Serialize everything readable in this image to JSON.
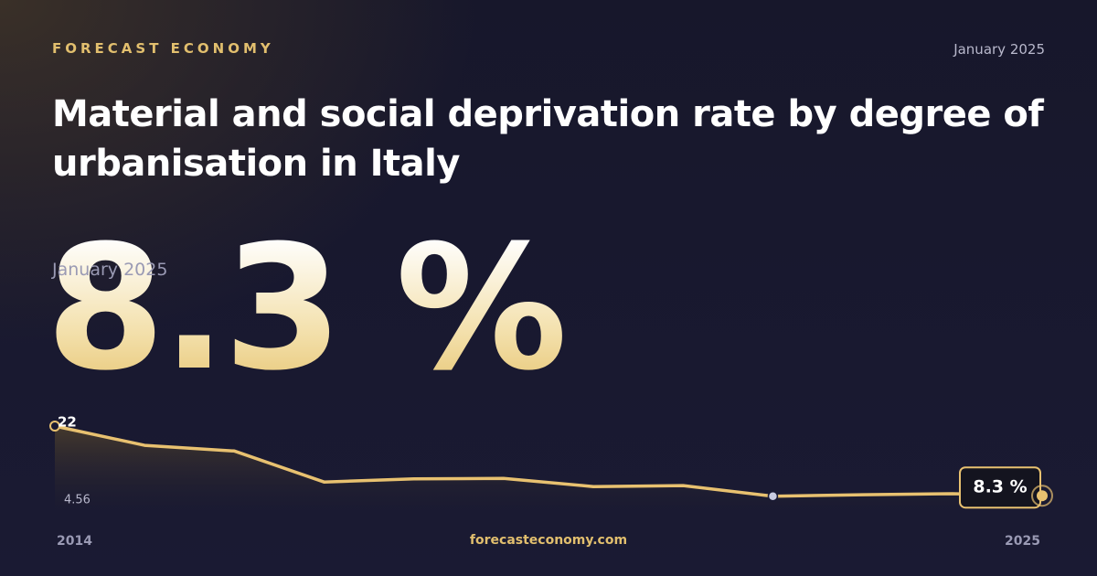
{
  "header": {
    "brand": "FORECAST ECONOMY",
    "date": "January 2025"
  },
  "footer": {
    "site": "forecasteconomy.com"
  },
  "chart_data": {
    "type": "line",
    "title": "Material and social deprivation rate by degree of urbanisation in Italy",
    "x": [
      2014,
      2015,
      2016,
      2017,
      2018,
      2019,
      2020,
      2021,
      2022,
      2023,
      2024,
      2025
    ],
    "values": [
      22,
      18.2,
      17.1,
      11.0,
      11.6,
      11.7,
      10.1,
      10.3,
      8.2,
      8.5,
      8.7,
      8.3
    ],
    "value_labels": [
      null,
      null,
      null,
      null,
      null,
      null,
      null,
      null,
      null,
      null,
      null,
      "8.3 %"
    ],
    "color": "#e8c170",
    "xlim": [
      2014,
      2025
    ],
    "xticks": [
      2014,
      2025
    ],
    "ylim": [
      4.56,
      22
    ],
    "yticks": [
      22,
      4.56
    ]
  }
}
